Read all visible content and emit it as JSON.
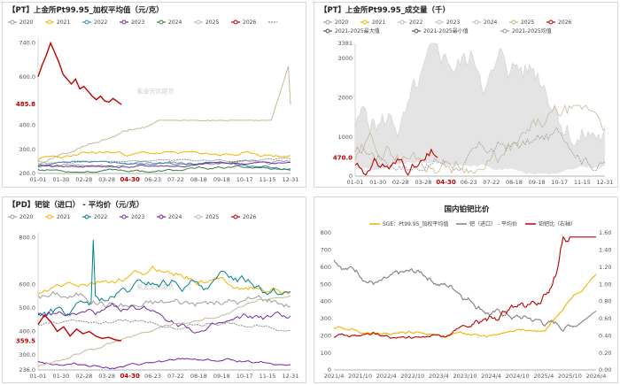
{
  "charts": [
    {
      "id": "pt-price",
      "type": "line",
      "title": "【PT】上金所Pt99.95_加权平均值（元/克）",
      "watermark": "紫金天风期货",
      "legend": [
        "2020",
        "2021",
        "2022",
        "2023",
        "2024",
        "2025",
        "2026",
        "2020-2025均值"
      ],
      "colors": [
        "#9e9e9e",
        "#f0b400",
        "#2e86c1",
        "#7030a0",
        "#3a7d44",
        "#c8b89a",
        "#c00000",
        "#777777"
      ],
      "yticks": [
        "740.0",
        "600.0",
        "485.8",
        "400.0",
        "300.0",
        "200.0"
      ],
      "xticks": [
        "01-01",
        "01-30",
        "02-28",
        "03-28",
        "04-30",
        "06-23",
        "07-22",
        "08-18",
        "09-18",
        "10-17",
        "11-15",
        "12-31"
      ],
      "highlight_value": "485.8",
      "highlight_date": "04-30",
      "ylim": [
        200,
        760
      ]
    },
    {
      "id": "pt-volume",
      "type": "area",
      "title": "【PT】上金所Pt99.95_成交量（千）",
      "watermark": "紫金天风期货",
      "legend": [
        "2020",
        "2021",
        "2022",
        "2023",
        "2024",
        "2025",
        "2026",
        "2021-2025最大值",
        "2021-2025最小值",
        "2021-2025均值"
      ],
      "colors": [
        "#9e9e9e",
        "#f0b400",
        "#bdbdbd",
        "#bdbdbd",
        "#bdbdbd",
        "#c8b89a",
        "#c00000",
        "#555555",
        "#555555",
        "#999999"
      ],
      "yticks": [
        "3381",
        "3000",
        "2000",
        "1000",
        "470.0",
        "0"
      ],
      "xticks": [
        "01-01",
        "01-30",
        "02-28",
        "03-28",
        "04-30",
        "06-23",
        "07-22",
        "08-18",
        "09-18",
        "10-17",
        "11-15",
        "12-31"
      ],
      "highlight_value": "470.0",
      "highlight_date": "04-30",
      "ylim": [
        0,
        3381
      ]
    },
    {
      "id": "pd-price",
      "type": "line",
      "title": "【PD】钯锭（进口） - 平均价（元/克）",
      "watermark": "紫金天风期货",
      "legend": [
        "2020",
        "2021",
        "2022",
        "2023",
        "2024",
        "2025",
        "2026",
        "2020-2025均值"
      ],
      "colors": [
        "#9e9e9e",
        "#f0b400",
        "#00838f",
        "#7030a0",
        "#7b1fa2",
        "#c8b89a",
        "#c00000",
        "#777777"
      ],
      "yticks": [
        "800.0",
        "600.0",
        "500.0",
        "400.0",
        "359.5",
        "300.0",
        "236.0"
      ],
      "xticks": [
        "01-01",
        "01-30",
        "02-28",
        "03-28",
        "04-30",
        "06-23",
        "07-22",
        "08-18",
        "09-18",
        "10-17",
        "11-15",
        "12-31"
      ],
      "highlight_value": "359.5",
      "highlight_date": "04-30",
      "ylim": [
        236,
        820
      ]
    },
    {
      "id": "pt-pd-ratio",
      "type": "line",
      "title": "国内铂钯比价",
      "legend": [
        "SGE：Pt99.95_加权平均值",
        "钯（进口） - 平均价",
        "铂钯比（右轴）"
      ],
      "colors": [
        "#f0b400",
        "#808080",
        "#c00000"
      ],
      "yticks_left": [
        "800",
        "700",
        "600",
        "500",
        "400",
        "300",
        "200",
        "100",
        "0"
      ],
      "yticks_right": [
        "1.60",
        "1.40",
        "1.20",
        "1.00",
        "0.80",
        "0.60",
        "0.40",
        "0.20",
        "0.00"
      ],
      "xticks": [
        "2021/4",
        "2021/10",
        "2022/4",
        "2022/10",
        "2023/4",
        "2023/10",
        "2024/4",
        "2024/10",
        "2025/4",
        "2025/10",
        "2026/4"
      ],
      "ylim_left": [
        0,
        800
      ],
      "ylim_right": [
        0,
        1.6
      ]
    }
  ]
}
